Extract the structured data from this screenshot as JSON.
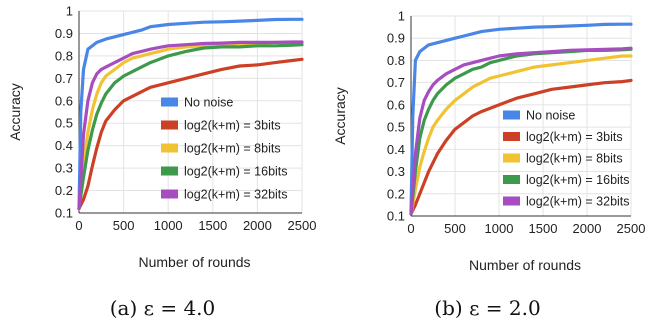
{
  "chart_data": [
    {
      "type": "line",
      "caption": "(a) ε = 4.0",
      "xlabel": "Number of rounds",
      "ylabel": "Accuracy",
      "xlim": [
        0,
        2500
      ],
      "ylim": [
        0.1,
        1.0
      ],
      "xticks": [
        "0",
        "500",
        "1000",
        "1500",
        "2000",
        "2500"
      ],
      "yticks": [
        "0.1",
        "0.2",
        "0.3",
        "0.4",
        "0.5",
        "0.6",
        "0.7",
        "0.8",
        "0.9",
        "1"
      ],
      "grid": true,
      "legend_position": "center-right",
      "series": [
        {
          "name": "No noise",
          "color": "#4a86e8",
          "x": [
            0,
            20,
            50,
            100,
            200,
            300,
            400,
            500,
            600,
            700,
            800,
            900,
            1000,
            1200,
            1400,
            1600,
            1800,
            2000,
            2200,
            2400,
            2500
          ],
          "y": [
            0.12,
            0.55,
            0.74,
            0.83,
            0.86,
            0.875,
            0.885,
            0.895,
            0.905,
            0.915,
            0.93,
            0.935,
            0.94,
            0.945,
            0.95,
            0.952,
            0.955,
            0.958,
            0.962,
            0.963,
            0.963
          ]
        },
        {
          "name": "log2(k+m) = 3bits",
          "color": "#cc4125",
          "x": [
            0,
            50,
            100,
            150,
            200,
            250,
            300,
            400,
            500,
            600,
            700,
            800,
            1000,
            1200,
            1400,
            1600,
            1800,
            2000,
            2200,
            2400,
            2500
          ],
          "y": [
            0.12,
            0.16,
            0.22,
            0.31,
            0.39,
            0.46,
            0.51,
            0.56,
            0.6,
            0.62,
            0.64,
            0.66,
            0.68,
            0.7,
            0.72,
            0.74,
            0.755,
            0.76,
            0.77,
            0.78,
            0.785
          ]
        },
        {
          "name": "log2(k+m) = 8bits",
          "color": "#f1c232",
          "x": [
            0,
            50,
            100,
            150,
            200,
            250,
            300,
            400,
            500,
            600,
            700,
            800,
            900,
            1000,
            1200,
            1400,
            1600,
            1800,
            2000,
            2200,
            2400,
            2500
          ],
          "y": [
            0.12,
            0.32,
            0.46,
            0.56,
            0.63,
            0.68,
            0.71,
            0.74,
            0.77,
            0.79,
            0.8,
            0.81,
            0.82,
            0.83,
            0.84,
            0.845,
            0.85,
            0.855,
            0.855,
            0.86,
            0.86,
            0.86
          ]
        },
        {
          "name": "log2(k+m) = 16bits",
          "color": "#3c9a4a",
          "x": [
            0,
            50,
            100,
            150,
            200,
            250,
            300,
            400,
            500,
            600,
            700,
            800,
            900,
            1000,
            1200,
            1400,
            1600,
            1800,
            2000,
            2200,
            2400,
            2500
          ],
          "y": [
            0.12,
            0.26,
            0.38,
            0.47,
            0.54,
            0.59,
            0.63,
            0.68,
            0.71,
            0.73,
            0.75,
            0.77,
            0.785,
            0.8,
            0.82,
            0.835,
            0.84,
            0.84,
            0.845,
            0.845,
            0.848,
            0.85
          ]
        },
        {
          "name": "log2(k+m) = 32bits",
          "color": "#a64dc0",
          "x": [
            0,
            50,
            100,
            150,
            200,
            250,
            300,
            400,
            500,
            600,
            700,
            800,
            900,
            1000,
            1200,
            1400,
            1600,
            1800,
            2000,
            2200,
            2400,
            2500
          ],
          "y": [
            0.12,
            0.45,
            0.6,
            0.68,
            0.72,
            0.74,
            0.75,
            0.77,
            0.79,
            0.81,
            0.82,
            0.83,
            0.838,
            0.845,
            0.85,
            0.855,
            0.857,
            0.86,
            0.86,
            0.86,
            0.862,
            0.862
          ]
        }
      ]
    },
    {
      "type": "line",
      "caption": "(b) ε = 2.0",
      "xlabel": "Number of rounds",
      "ylabel": "Accuracy",
      "xlim": [
        0,
        2500
      ],
      "ylim": [
        0.1,
        1.0
      ],
      "xticks": [
        "0",
        "500",
        "1000",
        "1500",
        "2000",
        "2500"
      ],
      "yticks": [
        "0.1",
        "0.2",
        "0.3",
        "0.4",
        "0.5",
        "0.6",
        "0.7",
        "0.8",
        "0.9",
        "1"
      ],
      "grid": true,
      "legend_position": "center-right",
      "series": [
        {
          "name": "No noise",
          "color": "#4a86e8",
          "x": [
            0,
            20,
            50,
            100,
            200,
            300,
            400,
            500,
            600,
            700,
            800,
            900,
            1000,
            1200,
            1400,
            1600,
            1800,
            2000,
            2200,
            2400,
            2500
          ],
          "y": [
            0.12,
            0.55,
            0.8,
            0.84,
            0.87,
            0.88,
            0.89,
            0.9,
            0.91,
            0.92,
            0.93,
            0.935,
            0.94,
            0.945,
            0.95,
            0.952,
            0.955,
            0.958,
            0.962,
            0.963,
            0.963
          ]
        },
        {
          "name": "log2(k+m) = 3bits",
          "color": "#cc4125",
          "x": [
            0,
            50,
            100,
            150,
            200,
            250,
            300,
            400,
            500,
            600,
            700,
            800,
            1000,
            1200,
            1400,
            1600,
            1800,
            2000,
            2200,
            2400,
            2500
          ],
          "y": [
            0.11,
            0.15,
            0.2,
            0.25,
            0.3,
            0.34,
            0.38,
            0.44,
            0.49,
            0.52,
            0.55,
            0.57,
            0.6,
            0.63,
            0.65,
            0.67,
            0.68,
            0.69,
            0.7,
            0.705,
            0.71
          ]
        },
        {
          "name": "log2(k+m) = 8bits",
          "color": "#f1c232",
          "x": [
            0,
            50,
            100,
            150,
            200,
            250,
            300,
            400,
            500,
            600,
            700,
            800,
            900,
            1000,
            1200,
            1400,
            1600,
            1800,
            2000,
            2200,
            2400,
            2500
          ],
          "y": [
            0.11,
            0.22,
            0.32,
            0.39,
            0.45,
            0.5,
            0.53,
            0.58,
            0.62,
            0.65,
            0.68,
            0.7,
            0.72,
            0.73,
            0.75,
            0.77,
            0.78,
            0.79,
            0.8,
            0.81,
            0.82,
            0.82
          ]
        },
        {
          "name": "log2(k+m) = 16bits",
          "color": "#3c9a4a",
          "x": [
            0,
            50,
            100,
            150,
            200,
            250,
            300,
            400,
            500,
            600,
            700,
            800,
            900,
            1000,
            1200,
            1400,
            1600,
            1800,
            2000,
            2200,
            2400,
            2500
          ],
          "y": [
            0.11,
            0.3,
            0.45,
            0.53,
            0.58,
            0.62,
            0.65,
            0.69,
            0.72,
            0.74,
            0.76,
            0.77,
            0.79,
            0.8,
            0.82,
            0.83,
            0.835,
            0.84,
            0.845,
            0.845,
            0.848,
            0.85
          ]
        },
        {
          "name": "log2(k+m) = 32bits",
          "color": "#a64dc0",
          "x": [
            0,
            50,
            100,
            150,
            200,
            250,
            300,
            400,
            500,
            600,
            700,
            800,
            900,
            1000,
            1200,
            1400,
            1600,
            1800,
            2000,
            2200,
            2400,
            2500
          ],
          "y": [
            0.11,
            0.38,
            0.54,
            0.62,
            0.66,
            0.69,
            0.71,
            0.74,
            0.76,
            0.78,
            0.79,
            0.8,
            0.81,
            0.82,
            0.83,
            0.835,
            0.84,
            0.845,
            0.848,
            0.85,
            0.852,
            0.855
          ]
        }
      ]
    }
  ]
}
